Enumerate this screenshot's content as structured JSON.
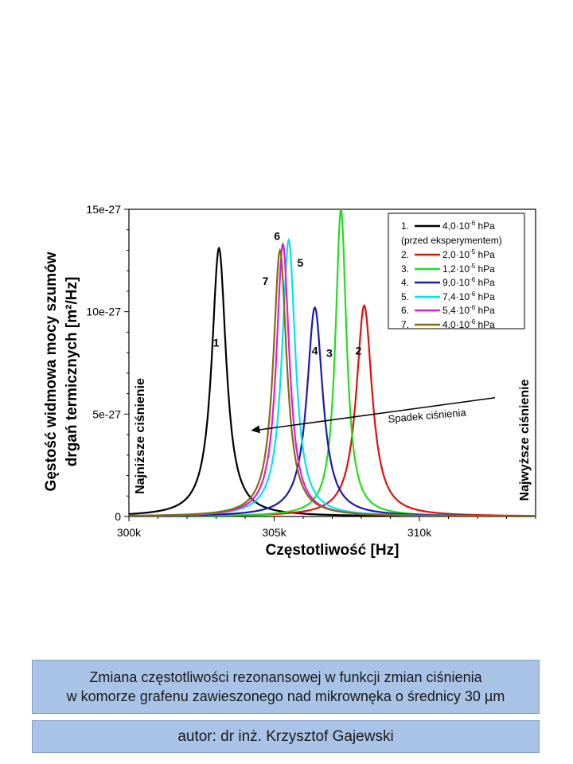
{
  "chart_data": {
    "type": "line",
    "xlabel": "Częstotliwość [Hz]",
    "ylabel_line1": "Gęstość widmowa mocy szumów",
    "ylabel_line2": "drgań termicznych [m²/Hz]",
    "xlim": [
      300000,
      314000
    ],
    "ylim": [
      0,
      1.5e-26
    ],
    "x_ticks": [
      {
        "value": 300000,
        "label": "300k"
      },
      {
        "value": 305000,
        "label": "305k"
      },
      {
        "value": 310000,
        "label": "310k"
      }
    ],
    "y_ticks": [
      {
        "value": 0,
        "label": "0"
      },
      {
        "value": 5e-27,
        "label": "5e-27"
      },
      {
        "value": 1e-26,
        "label": "10e-27"
      },
      {
        "value": 1.5e-26,
        "label": "15e-27"
      }
    ],
    "series": [
      {
        "id": "1",
        "legend_num": "1.",
        "legend_text": "4,0·10",
        "exp": "-6",
        "unit": " hPa",
        "extra_line": "(przed eksperymentem)",
        "color": "#000000",
        "peak_x": 303100,
        "peak_y": 1.31e-26,
        "width": 300
      },
      {
        "id": "2",
        "legend_num": "2.",
        "legend_text": "2,0·10",
        "exp": "-5",
        "unit": " hPa",
        "color": "#e01010",
        "peak_x": 308100,
        "peak_y": 1.03e-26,
        "width": 330
      },
      {
        "id": "3",
        "legend_num": "3.",
        "legend_text": "1,2·10",
        "exp": "-5",
        "unit": " hPa",
        "color": "#22dd22",
        "peak_x": 307300,
        "peak_y": 1.5e-26,
        "width": 230
      },
      {
        "id": "4",
        "legend_num": "4.",
        "legend_text": "9,0·10",
        "exp": "-6",
        "unit": " hPa",
        "color": "#1a1ab0",
        "peak_x": 306400,
        "peak_y": 1.02e-26,
        "width": 330
      },
      {
        "id": "5",
        "legend_num": "5.",
        "legend_text": "7,4·10",
        "exp": "-6",
        "unit": " hPa",
        "color": "#00e5ee",
        "peak_x": 305500,
        "peak_y": 1.35e-26,
        "width": 280
      },
      {
        "id": "6",
        "legend_num": "6.",
        "legend_text": "5,4·10",
        "exp": "-6",
        "unit": " hPa",
        "color": "#e81ad8",
        "peak_x": 305300,
        "peak_y": 1.33e-26,
        "width": 270
      },
      {
        "id": "7",
        "legend_num": "7.",
        "legend_text": "4,0·10",
        "exp": "-6",
        "unit": " hPa",
        "color": "#7f6e12",
        "peak_x": 305200,
        "peak_y": 1.3e-26,
        "width": 280
      }
    ],
    "curve_labels": [
      {
        "text": "1",
        "x": 303000,
        "y": 8.3e-27
      },
      {
        "text": "7",
        "x": 304700,
        "y": 1.13e-26
      },
      {
        "text": "6",
        "x": 305100,
        "y": 1.35e-26
      },
      {
        "text": "5",
        "x": 305900,
        "y": 1.22e-26
      },
      {
        "text": "4",
        "x": 306400,
        "y": 7.9e-27
      },
      {
        "text": "3",
        "x": 306900,
        "y": 7.8e-27
      },
      {
        "text": "2",
        "x": 307900,
        "y": 7.9e-27
      }
    ],
    "annotations": {
      "left_vertical": "Najniższe ciśnienie",
      "right_vertical": "Najwyższe ciśnienie",
      "arrow_label": "Spadek ciśnienia",
      "arrow_from": {
        "x": 312600,
        "y": 5.8e-27
      },
      "arrow_to": {
        "x": 304200,
        "y": 4.2e-27
      }
    },
    "grid": false,
    "legend_position": "top-right"
  },
  "caption": {
    "line1": "Zmiana częstotliwości rezonansowej w funkcji zmian ciśnienia",
    "line2": "w komorze grafenu zawieszonego nad mikrownęka o średnicy 30 µm"
  },
  "author": "autor: dr inż. Krzysztof Gajewski"
}
